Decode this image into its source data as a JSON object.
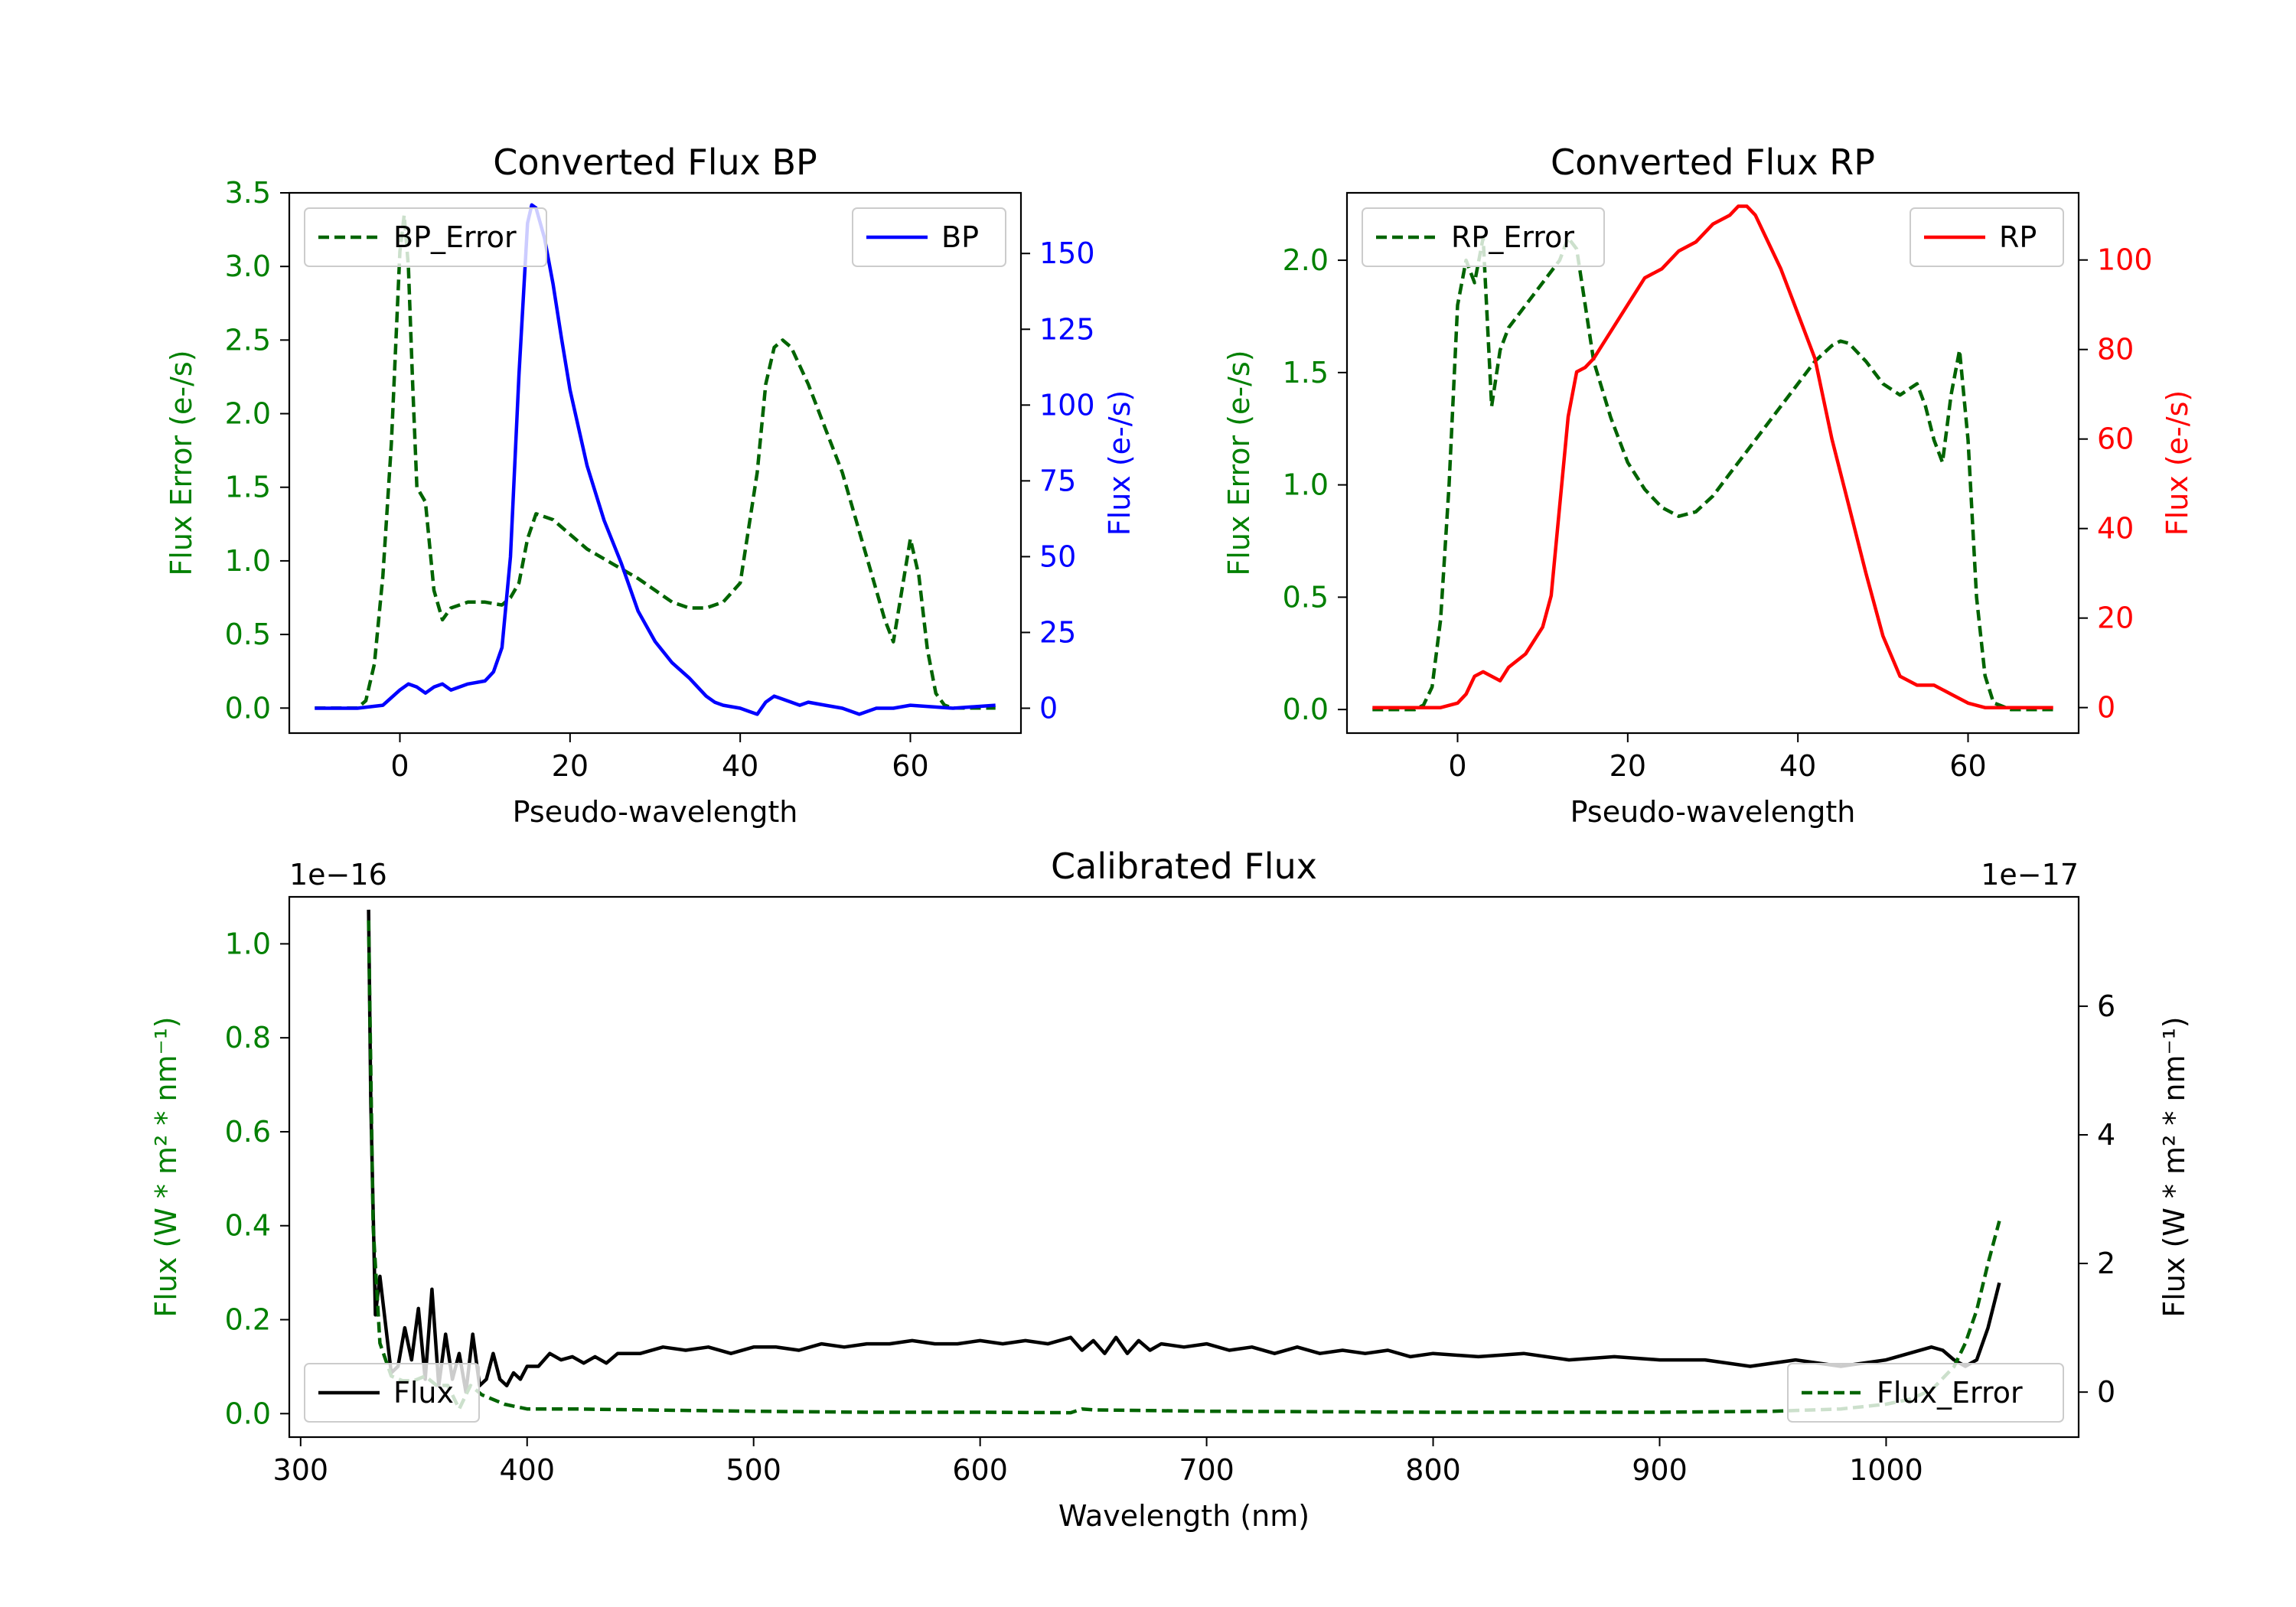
{
  "chart_data": [
    {
      "id": "bp",
      "type": "line",
      "title": "Converted Flux BP",
      "xlabel": "Pseudo-wavelength",
      "ylabel_left": "Flux Error (e-/s)",
      "ylabel_right": "Flux (e-/s)",
      "xlim": [
        -13,
        73
      ],
      "ylim_left": [
        -0.17,
        3.5
      ],
      "ylim_right": [
        -8.2,
        170
      ],
      "xticks": [
        0,
        20,
        40,
        60
      ],
      "yticks_left": [
        "0.0",
        "0.5",
        "1.0",
        "1.5",
        "2.0",
        "2.5",
        "3.0",
        "3.5"
      ],
      "yticks_right": [
        "0",
        "25",
        "50",
        "75",
        "100",
        "125",
        "150"
      ],
      "colors": {
        "left": "#008000",
        "right": "#0000ff"
      },
      "legend_left": "BP_Error",
      "legend_right": "BP",
      "series": [
        {
          "name": "BP_Error",
          "axis": "left",
          "style": "dashed",
          "color": "#006400",
          "x": [
            -10,
            -5,
            -4,
            -3,
            -2,
            -1,
            0,
            0.5,
            1,
            1.5,
            2,
            3,
            4,
            5,
            6,
            8,
            10,
            12,
            13,
            14,
            15,
            16,
            18,
            20,
            22,
            25,
            28,
            30,
            32,
            34,
            36,
            38,
            40,
            42,
            43,
            44,
            45,
            46,
            48,
            50,
            52,
            54,
            56,
            57,
            58,
            59,
            60,
            61,
            62,
            63,
            64,
            65,
            70
          ],
          "values": [
            0,
            0,
            0.05,
            0.3,
            0.9,
            1.8,
            3.1,
            3.35,
            3.0,
            2.2,
            1.5,
            1.4,
            0.8,
            0.6,
            0.68,
            0.72,
            0.72,
            0.7,
            0.75,
            0.85,
            1.15,
            1.32,
            1.28,
            1.18,
            1.08,
            0.98,
            0.88,
            0.8,
            0.72,
            0.68,
            0.68,
            0.72,
            0.85,
            1.6,
            2.2,
            2.45,
            2.5,
            2.45,
            2.2,
            1.9,
            1.6,
            1.2,
            0.8,
            0.6,
            0.45,
            0.8,
            1.15,
            0.9,
            0.4,
            0.1,
            0.02,
            0,
            0
          ]
        },
        {
          "name": "BP",
          "axis": "right",
          "style": "solid",
          "color": "#0000ff",
          "x": [
            -10,
            -5,
            -2,
            0,
            1,
            2,
            3,
            4,
            5,
            6,
            8,
            10,
            11,
            12,
            13,
            14,
            15,
            15.5,
            16,
            17,
            18,
            19,
            20,
            22,
            24,
            26,
            28,
            30,
            32,
            34,
            35,
            36,
            37,
            38,
            40,
            41,
            42,
            43,
            44,
            45,
            46,
            47,
            48,
            50,
            52,
            54,
            56,
            58,
            60,
            65,
            70
          ],
          "values": [
            0,
            0,
            1,
            6,
            8,
            7,
            5,
            7,
            8,
            6,
            8,
            9,
            12,
            20,
            50,
            110,
            160,
            166,
            165,
            155,
            140,
            122,
            105,
            80,
            62,
            48,
            32,
            22,
            15,
            10,
            7,
            4,
            2,
            1,
            0,
            -1,
            -2,
            2,
            4,
            3,
            2,
            1,
            2,
            1,
            0,
            -2,
            0,
            0,
            1,
            0,
            1
          ]
        }
      ]
    },
    {
      "id": "rp",
      "type": "line",
      "title": "Converted Flux RP",
      "xlabel": "Pseudo-wavelength",
      "ylabel_left": "Flux Error (e-/s)",
      "ylabel_right": "Flux (e-/s)",
      "xlim": [
        -13,
        73
      ],
      "ylim_left": [
        -0.105,
        2.3
      ],
      "ylim_right": [
        -5.7,
        115
      ],
      "xticks": [
        0,
        20,
        40,
        60
      ],
      "yticks_left": [
        "0.0",
        "0.5",
        "1.0",
        "1.5",
        "2.0"
      ],
      "yticks_right": [
        "0",
        "20",
        "40",
        "60",
        "80",
        "100"
      ],
      "colors": {
        "left": "#008000",
        "right": "#ff0000"
      },
      "legend_left": "RP_Error",
      "legend_right": "RP",
      "series": [
        {
          "name": "RP_Error",
          "axis": "left",
          "style": "dashed",
          "color": "#006400",
          "x": [
            -10,
            -5,
            -4,
            -3,
            -2,
            -1,
            0,
            1,
            2,
            3,
            4,
            5,
            6,
            7,
            8,
            10,
            12,
            13,
            14,
            15,
            16,
            18,
            20,
            22,
            24,
            26,
            28,
            30,
            32,
            34,
            36,
            38,
            40,
            42,
            44,
            45,
            46,
            48,
            50,
            52,
            54,
            55,
            56,
            57,
            58,
            59,
            60,
            61,
            62,
            63,
            65,
            70
          ],
          "values": [
            0,
            0,
            0.02,
            0.1,
            0.4,
            1.0,
            1.8,
            2.0,
            1.9,
            2.1,
            1.35,
            1.6,
            1.7,
            1.75,
            1.8,
            1.9,
            2.0,
            2.1,
            2.05,
            1.8,
            1.55,
            1.3,
            1.1,
            0.98,
            0.9,
            0.86,
            0.88,
            0.95,
            1.05,
            1.15,
            1.25,
            1.35,
            1.45,
            1.55,
            1.62,
            1.64,
            1.63,
            1.55,
            1.45,
            1.4,
            1.45,
            1.35,
            1.2,
            1.1,
            1.4,
            1.6,
            1.2,
            0.5,
            0.15,
            0.03,
            0,
            0
          ]
        },
        {
          "name": "RP",
          "axis": "right",
          "style": "solid",
          "color": "#ff0000",
          "x": [
            -10,
            -5,
            -2,
            0,
            1,
            2,
            3,
            4,
            5,
            6,
            8,
            10,
            11,
            12,
            13,
            14,
            15,
            16,
            18,
            20,
            22,
            24,
            26,
            28,
            30,
            32,
            33,
            34,
            35,
            36,
            37,
            38,
            40,
            42,
            44,
            46,
            48,
            50,
            52,
            54,
            56,
            58,
            60,
            62,
            65,
            70
          ],
          "values": [
            0,
            0,
            0,
            1,
            3,
            7,
            8,
            7,
            6,
            9,
            12,
            18,
            25,
            45,
            65,
            75,
            76,
            78,
            84,
            90,
            96,
            98,
            102,
            104,
            108,
            110,
            112,
            112,
            110,
            106,
            102,
            98,
            88,
            78,
            60,
            45,
            30,
            16,
            7,
            5,
            5,
            3,
            1,
            0,
            0,
            0
          ]
        }
      ]
    },
    {
      "id": "calibrated",
      "type": "line",
      "title": "Calibrated Flux",
      "xlabel": "Wavelength (nm)",
      "ylabel_left": "Flux (W * m² * nm⁻¹)",
      "ylabel_right": "Flux (W * m² * nm⁻¹)",
      "offset_left": "1e−16",
      "offset_right": "1e−17",
      "xlim": [
        295,
        1085
      ],
      "ylim_left": [
        -0.05,
        1.1
      ],
      "ylim_right": [
        -0.7,
        7.7
      ],
      "xticks": [
        300,
        400,
        500,
        600,
        700,
        800,
        900,
        1000
      ],
      "yticks_left": [
        "0.0",
        "0.2",
        "0.4",
        "0.6",
        "0.8",
        "1.0"
      ],
      "yticks_right": [
        "0",
        "2",
        "4",
        "6"
      ],
      "colors": {
        "left": "#008000",
        "right": "#000000"
      },
      "legend_left": "Flux",
      "legend_right": "Flux_Error",
      "series": [
        {
          "name": "Flux",
          "axis": "right",
          "style": "solid",
          "color": "#000000",
          "x": [
            330,
            331,
            333,
            335,
            337,
            340,
            343,
            346,
            349,
            352,
            355,
            358,
            361,
            364,
            367,
            370,
            373,
            376,
            379,
            382,
            385,
            388,
            391,
            394,
            397,
            400,
            405,
            410,
            415,
            420,
            425,
            430,
            435,
            440,
            450,
            460,
            470,
            480,
            490,
            500,
            510,
            520,
            530,
            540,
            550,
            560,
            570,
            580,
            590,
            600,
            610,
            620,
            630,
            640,
            645,
            650,
            655,
            660,
            665,
            670,
            675,
            680,
            690,
            700,
            710,
            720,
            730,
            740,
            750,
            760,
            770,
            780,
            790,
            800,
            820,
            840,
            860,
            880,
            900,
            920,
            940,
            960,
            980,
            1000,
            1010,
            1020,
            1025,
            1030,
            1035,
            1040,
            1045,
            1050
          ],
          "values": [
            7.5,
            4.5,
            1.2,
            1.8,
            1.2,
            0.3,
            0.4,
            1.0,
            0.5,
            1.3,
            0.2,
            1.6,
            0.1,
            0.9,
            0.2,
            0.6,
            0.0,
            0.9,
            0.1,
            0.2,
            0.6,
            0.2,
            0.1,
            0.3,
            0.2,
            0.4,
            0.4,
            0.6,
            0.5,
            0.55,
            0.45,
            0.55,
            0.45,
            0.6,
            0.6,
            0.7,
            0.65,
            0.7,
            0.6,
            0.7,
            0.7,
            0.65,
            0.75,
            0.7,
            0.75,
            0.75,
            0.8,
            0.75,
            0.75,
            0.8,
            0.75,
            0.8,
            0.75,
            0.85,
            0.65,
            0.8,
            0.6,
            0.85,
            0.6,
            0.8,
            0.65,
            0.75,
            0.7,
            0.75,
            0.65,
            0.7,
            0.6,
            0.7,
            0.6,
            0.65,
            0.6,
            0.65,
            0.55,
            0.6,
            0.55,
            0.6,
            0.5,
            0.55,
            0.5,
            0.5,
            0.4,
            0.5,
            0.4,
            0.5,
            0.6,
            0.7,
            0.65,
            0.5,
            0.4,
            0.5,
            1.0,
            1.7
          ]
        },
        {
          "name": "Flux_Error",
          "axis": "left",
          "style": "dashed",
          "color": "#006400",
          "x": [
            330,
            332,
            335,
            340,
            345,
            350,
            355,
            360,
            365,
            370,
            375,
            380,
            390,
            400,
            420,
            450,
            500,
            550,
            600,
            640,
            645,
            650,
            700,
            800,
            900,
            950,
            980,
            1000,
            1010,
            1020,
            1030,
            1035,
            1040,
            1045,
            1050
          ],
          "values": [
            1.05,
            0.4,
            0.15,
            0.08,
            0.07,
            0.07,
            0.08,
            0.06,
            0.06,
            0.01,
            0.06,
            0.04,
            0.02,
            0.01,
            0.01,
            0.008,
            0.005,
            0.003,
            0.003,
            0.002,
            0.01,
            0.008,
            0.005,
            0.003,
            0.003,
            0.005,
            0.01,
            0.02,
            0.03,
            0.05,
            0.1,
            0.15,
            0.22,
            0.32,
            0.41
          ]
        }
      ]
    }
  ]
}
